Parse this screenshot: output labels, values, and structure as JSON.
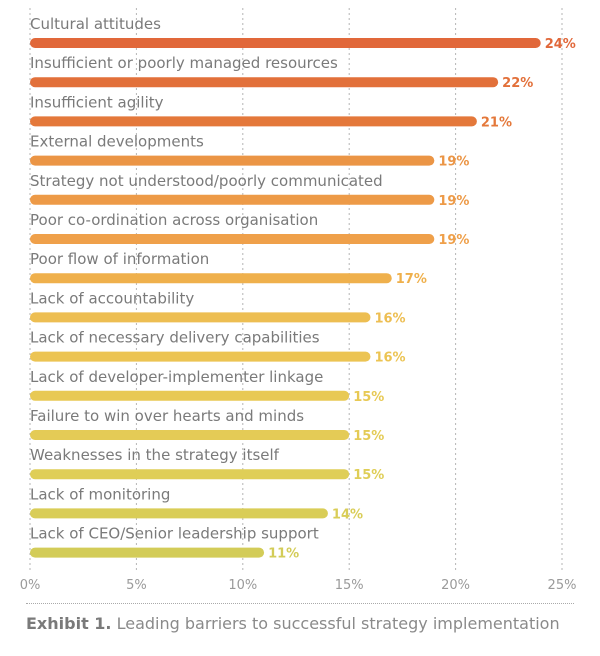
{
  "chart_data": {
    "type": "bar",
    "orientation": "horizontal",
    "categories": [
      "Cultural attitudes",
      "Insufficient or poorly managed resources",
      "Insufficient agility",
      "External developments",
      "Strategy not understood/poorly communicated",
      "Poor co-ordination across organisation",
      "Poor flow of information",
      "Lack of accountability",
      "Lack of necessary delivery capabilities",
      "Lack of developer-implementer linkage",
      "Failure to win over hearts and minds",
      "Weaknesses in the strategy itself",
      "Lack of monitoring",
      "Lack of CEO/Senior leadership support"
    ],
    "values": [
      24,
      22,
      21,
      19,
      19,
      19,
      17,
      16,
      16,
      15,
      15,
      15,
      14,
      11
    ],
    "value_labels": [
      "24%",
      "22%",
      "21%",
      "19%",
      "19%",
      "19%",
      "17%",
      "16%",
      "16%",
      "15%",
      "15%",
      "15%",
      "14%",
      "11%"
    ],
    "colors": [
      "#e1683a",
      "#e2703a",
      "#e4783a",
      "#eb9545",
      "#ed9a47",
      "#efa04a",
      "#efb04c",
      "#edbe52",
      "#ecc453",
      "#e8c954",
      "#e4cb56",
      "#dfce57",
      "#d9cd57",
      "#d3cc58"
    ],
    "x_ticks": [
      0,
      5,
      10,
      15,
      20,
      25
    ],
    "x_tick_labels": [
      "0%",
      "5%",
      "10%",
      "15%",
      "20%",
      "25%"
    ],
    "xlim": [
      0,
      25
    ],
    "grid": "vertical-dotted",
    "title": "",
    "xlabel": "",
    "ylabel": ""
  },
  "caption": {
    "bold": "Exhibit 1.",
    "text": " Leading barriers to successful strategy implementation"
  }
}
